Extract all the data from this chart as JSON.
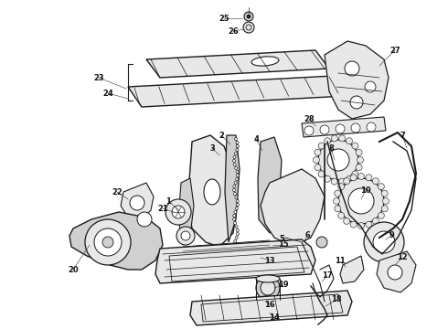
{
  "bg_color": "#ffffff",
  "line_color": "#1a1a1a",
  "fill_light": "#e8e8e8",
  "fill_mid": "#d0d0d0",
  "fill_dark": "#b8b8b8"
}
